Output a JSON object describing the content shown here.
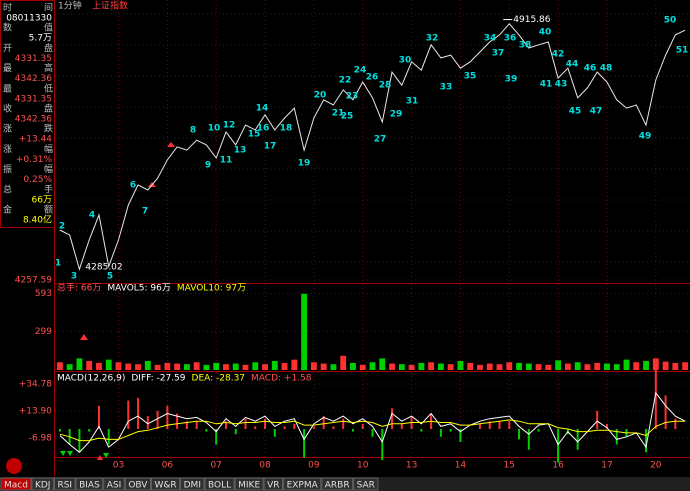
{
  "header": {
    "period": "1分钟",
    "symbol": "上证指数"
  },
  "info_panel": [
    {
      "label": "时间",
      "value": "08011330"
    },
    {
      "label": "数值",
      "value": "5.7万"
    },
    {
      "label": "开盘",
      "value": "4331.35"
    },
    {
      "label": "最高",
      "value": "4342.36"
    },
    {
      "label": "最低",
      "value": "4331.35"
    },
    {
      "label": "收盘",
      "value": "4342.36"
    },
    {
      "label": "涨跌",
      "value": "+13.44"
    },
    {
      "label": "涨幅",
      "value": "+0.31%"
    },
    {
      "label": "振幅",
      "value": "0.25%"
    },
    {
      "label": "总手",
      "value": "66万"
    },
    {
      "label": "金额",
      "value": "8.40亿"
    }
  ],
  "chart_data": [
    {
      "type": "line",
      "color": "#e8e8e8",
      "categories": [
        null,
        null,
        null,
        null,
        null,
        null,
        "03",
        null,
        null,
        null,
        null,
        "06",
        null,
        null,
        null,
        null,
        "07",
        null,
        null,
        null,
        null,
        "08",
        null,
        null,
        null,
        null,
        "09",
        null,
        null,
        null,
        null,
        "10",
        null,
        null,
        null,
        null,
        "13",
        null,
        null,
        null,
        null,
        "14",
        null,
        null,
        null,
        null,
        "15",
        null,
        null,
        null,
        null,
        "16",
        null,
        null,
        null,
        null,
        "17",
        null,
        null,
        null,
        null,
        "20",
        null,
        null,
        null
      ],
      "values": [
        4384,
        4371,
        4285,
        4359,
        4422,
        4292,
        4359,
        4447,
        4498,
        4485,
        4515,
        4561,
        4594,
        4586,
        4611,
        4599,
        4566,
        4632,
        4599,
        4649,
        4637,
        4675,
        4637,
        4667,
        4692,
        4586,
        4667,
        4713,
        4700,
        4738,
        4713,
        4758,
        4718,
        4657,
        4783,
        4750,
        4809,
        4788,
        4852,
        4819,
        4826,
        4793,
        4809,
        4834,
        4859,
        4877,
        4905,
        4877,
        4844,
        4852,
        4859,
        4768,
        4793,
        4718,
        4743,
        4783,
        4758,
        4713,
        4692,
        4700,
        4649,
        4763,
        4826,
        4877,
        4889
      ],
      "ylim": [
        4250,
        4940
      ],
      "yticks": [
        4257.59
      ],
      "high_label": 4915.86,
      "low_label": 4285.02,
      "wave_labels": [
        1,
        2,
        3,
        4,
        5,
        6,
        7,
        8,
        9,
        10,
        11,
        12,
        13,
        14,
        15,
        16,
        17,
        18,
        19,
        20,
        21,
        22,
        23,
        24,
        25,
        26,
        27,
        28,
        29,
        30,
        31,
        32,
        33,
        34,
        35,
        36,
        37,
        38,
        39,
        40,
        41,
        42,
        43,
        44,
        45,
        46,
        47,
        48,
        49,
        50,
        51
      ]
    },
    {
      "type": "bar",
      "legend": [
        "总手: 66万",
        "MAVOL5: 96万",
        "MAVOL10: 97万"
      ],
      "legend_colors": [
        "#ff5050",
        "#ffffff",
        "#ffff00"
      ],
      "up_color": "#ff3030",
      "down_color": "#00d000",
      "values": [
        60,
        45,
        90,
        70,
        55,
        80,
        60,
        50,
        45,
        70,
        40,
        55,
        50,
        45,
        60,
        40,
        55,
        45,
        50,
        40,
        60,
        45,
        70,
        55,
        80,
        590,
        60,
        50,
        45,
        110,
        55,
        40,
        60,
        90,
        50,
        45,
        40,
        55,
        60,
        50,
        45,
        70,
        55,
        40,
        50,
        45,
        60,
        55,
        50,
        45,
        40,
        75,
        50,
        60,
        45,
        55,
        50,
        45,
        80,
        60,
        70,
        90,
        65,
        55,
        60
      ],
      "ylim": [
        0,
        666
      ],
      "yticks": [
        593,
        299
      ]
    },
    {
      "type": "macd",
      "legend": [
        "MACD(12,26,9)",
        "DIFF: -27.59",
        "DEA: -28.37",
        "MACD: +1.58"
      ],
      "legend_colors": [
        "#ffffff",
        "#ffffff",
        "#ffff00",
        "#ff5050"
      ],
      "ylim": [
        -20.1,
        43.3
      ],
      "yticks": [
        {
          "value": 34.78,
          "label": "+34.78"
        },
        {
          "value": 13.9,
          "label": "+13.90"
        },
        {
          "value": -6.98,
          "label": "-6.98"
        }
      ],
      "series": [
        {
          "name": "DIFF",
          "color": "#ffffff",
          "values": [
            -5,
            -12,
            -18,
            -10,
            2,
            -14,
            -8,
            6,
            10,
            4,
            8,
            12,
            10,
            8,
            9,
            5,
            -2,
            8,
            2,
            9,
            6,
            10,
            2,
            6,
            8,
            -8,
            4,
            9,
            6,
            10,
            4,
            8,
            2,
            -10,
            12,
            6,
            10,
            4,
            12,
            2,
            4,
            -2,
            3,
            6,
            8,
            9,
            10,
            2,
            -4,
            3,
            4,
            -12,
            -2,
            -10,
            -2,
            6,
            1,
            -8,
            -6,
            -3,
            -14,
            28,
            18,
            10,
            6
          ]
        },
        {
          "name": "DEA",
          "color": "#ffff00",
          "values": [
            -4,
            -6,
            -9,
            -9,
            -7,
            -8,
            -8,
            -5,
            -2,
            -1,
            1,
            3,
            4,
            5,
            6,
            6,
            4,
            5,
            4,
            5,
            5,
            6,
            5,
            5,
            6,
            3,
            3,
            4,
            5,
            6,
            5,
            6,
            5,
            2,
            4,
            4,
            5,
            5,
            6,
            5,
            5,
            3,
            3,
            4,
            5,
            6,
            7,
            6,
            4,
            4,
            4,
            1,
            0,
            -2,
            -2,
            -1,
            -1,
            -2,
            -3,
            -3,
            -5,
            2,
            5,
            6,
            6
          ]
        },
        {
          "name": "MACD",
          "up_color": "#ff3030",
          "down_color": "#00d000",
          "values": [
            -2,
            -12,
            -18,
            -2,
            18,
            -12,
            0,
            22,
            24,
            10,
            14,
            18,
            12,
            6,
            6,
            -2,
            -12,
            6,
            -4,
            8,
            2,
            8,
            -6,
            2,
            4,
            -22,
            2,
            10,
            2,
            8,
            -2,
            4,
            -6,
            -24,
            16,
            4,
            10,
            -2,
            12,
            -6,
            -2,
            -10,
            0,
            4,
            6,
            6,
            6,
            -8,
            -16,
            -2,
            0,
            -26,
            -4,
            -16,
            0,
            14,
            4,
            -12,
            -6,
            0,
            -18,
            52,
            26,
            8,
            0
          ]
        }
      ]
    }
  ],
  "tabs": [
    "Macd",
    "KDJ",
    "RSI",
    "BIAS",
    "ASI",
    "OBV",
    "W&R",
    "DMI",
    "BOLL",
    "MIKE",
    "VR",
    "EXPMA",
    "ARBR",
    "SAR"
  ]
}
